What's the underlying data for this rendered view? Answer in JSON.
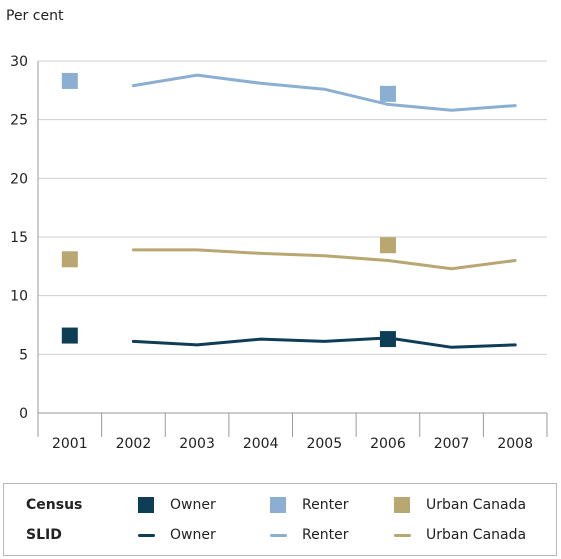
{
  "chart_data": {
    "type": "line",
    "title": "",
    "ylabel": "Per cent",
    "xlabel": "",
    "categories": [
      "2001",
      "2002",
      "2003",
      "2004",
      "2005",
      "2006",
      "2007",
      "2008"
    ],
    "ylim": [
      0,
      30
    ],
    "yticks": [
      "0",
      "5",
      "10",
      "15",
      "20",
      "25",
      "30"
    ],
    "grid": true,
    "legend_position": "bottom",
    "series": [
      {
        "group": "SLID",
        "name": "Owner",
        "style": "line",
        "color": "#0e3d56",
        "values": [
          null,
          6.1,
          5.8,
          6.3,
          6.1,
          6.4,
          5.6,
          5.8
        ]
      },
      {
        "group": "SLID",
        "name": "Renter",
        "style": "line",
        "color": "#8aafd2",
        "values": [
          null,
          27.9,
          28.8,
          28.1,
          27.6,
          26.3,
          25.8,
          26.2
        ]
      },
      {
        "group": "SLID",
        "name": "Urban Canada",
        "style": "line",
        "color": "#b9a772",
        "values": [
          null,
          13.9,
          13.9,
          13.6,
          13.4,
          13.0,
          12.3,
          13.0
        ]
      },
      {
        "group": "Census",
        "name": "Owner",
        "style": "marker",
        "color": "#0e3d56",
        "values": [
          6.6,
          null,
          null,
          null,
          null,
          6.3,
          null,
          null
        ]
      },
      {
        "group": "Census",
        "name": "Renter",
        "style": "marker",
        "color": "#8aafd2",
        "values": [
          28.3,
          null,
          null,
          null,
          null,
          27.2,
          null,
          null
        ]
      },
      {
        "group": "Census",
        "name": "Urban Canada",
        "style": "marker",
        "color": "#b9a772",
        "values": [
          13.1,
          null,
          null,
          null,
          null,
          14.3,
          null,
          null
        ]
      }
    ]
  },
  "legend": {
    "census_label": "Census",
    "slid_label": "SLID",
    "census_items": [
      {
        "label": "Owner",
        "color": "#0e3d56"
      },
      {
        "label": "Renter",
        "color": "#8aafd2"
      },
      {
        "label": "Urban Canada",
        "color": "#b9a772"
      }
    ],
    "slid_items": [
      {
        "label": "Owner",
        "color": "#0e3d56"
      },
      {
        "label": "Renter",
        "color": "#8aafd2"
      },
      {
        "label": "Urban Canada",
        "color": "#b9a772"
      }
    ]
  }
}
